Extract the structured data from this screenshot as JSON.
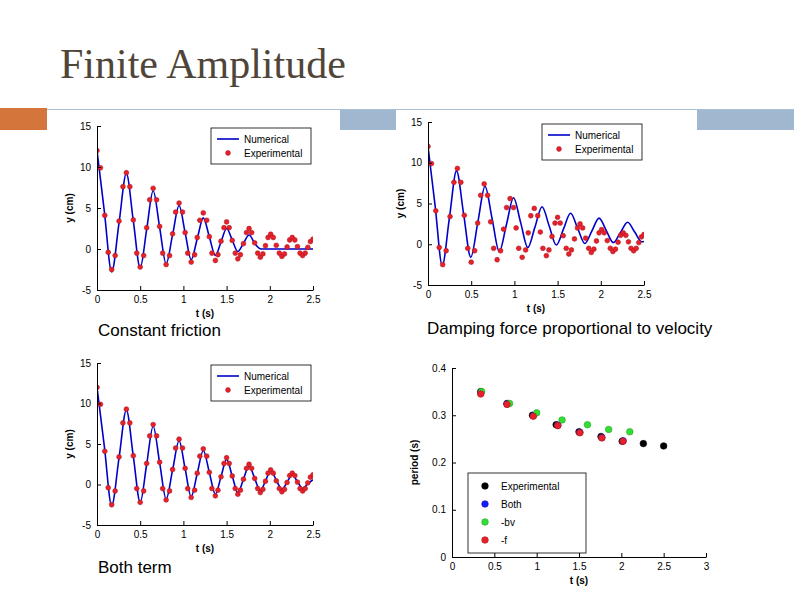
{
  "slide": {
    "title": "Finite Amplitude"
  },
  "chart_data": [
    {
      "type": "line",
      "caption": "Constant friction",
      "x_label": "t (s)",
      "y_label": "y (cm)",
      "xlim": [
        0,
        2.5
      ],
      "xticks": [
        0,
        0.5,
        1,
        1.5,
        2,
        2.5
      ],
      "ylim": [
        -5,
        15
      ],
      "yticks": [
        -5,
        0,
        5,
        10,
        15
      ],
      "grid": false,
      "legend": "upper right",
      "series": [
        {
          "name": "Numerical",
          "type": "line",
          "line_style": "solid",
          "color": "#0000c8",
          "x": [
            0,
            0.085,
            0.17,
            0.255,
            0.34,
            0.42,
            0.5,
            0.575,
            0.65,
            0.725,
            0.8,
            0.875,
            0.95,
            1.02,
            1.09,
            1.16,
            1.23,
            1.3,
            1.37,
            1.435,
            1.5,
            1.565,
            1.63,
            1.695,
            1.76,
            1.83,
            1.9,
            2.5
          ],
          "values": [
            12,
            4.6,
            -2.8,
            3.2,
            9.2,
            3.45,
            -2.3,
            2.4,
            7.1,
            2.65,
            -1.8,
            1.75,
            5.3,
            2.0,
            -1.3,
            1.25,
            3.8,
            1.5,
            -0.8,
            0.85,
            2.5,
            1.1,
            -0.3,
            0.7,
            1.7,
            0.6,
            0.0,
            0.0
          ]
        },
        {
          "name": "Experimental",
          "type": "scatter",
          "marker": "circle",
          "color": "#e8202a",
          "x": [
            0,
            0.04,
            0.09,
            0.13,
            0.17,
            0.21,
            0.255,
            0.3,
            0.34,
            0.38,
            0.42,
            0.46,
            0.5,
            0.54,
            0.575,
            0.61,
            0.65,
            0.69,
            0.725,
            0.76,
            0.8,
            0.84,
            0.875,
            0.91,
            0.95,
            0.99,
            1.02,
            1.05,
            1.09,
            1.13,
            1.16,
            1.19,
            1.23,
            1.27,
            1.3,
            1.33,
            1.37,
            1.4,
            1.435,
            1.47,
            1.5,
            1.53,
            1.565,
            1.6,
            1.63,
            1.66,
            1.695,
            1.73,
            1.76,
            1.79,
            1.825,
            1.86,
            1.89,
            1.92,
            1.95,
            1.98,
            2.01,
            2.04,
            2.075,
            2.11,
            2.14,
            2.17,
            2.2,
            2.23,
            2.26,
            2.29,
            2.32,
            2.35,
            2.38,
            2.41,
            2.44,
            2.47,
            2.5
          ],
          "values": [
            12,
            9.9,
            4.1,
            -0.4,
            -2.5,
            -0.8,
            3.4,
            7.6,
            9.3,
            7.6,
            3.55,
            -0.5,
            -2.2,
            -0.8,
            2.6,
            6.0,
            7.4,
            6.0,
            2.75,
            -0.5,
            -1.9,
            -0.8,
            1.85,
            4.5,
            5.6,
            4.5,
            2.0,
            -0.5,
            -1.6,
            -0.7,
            1.4,
            3.5,
            4.4,
            3.5,
            1.5,
            -0.5,
            -1.4,
            -0.7,
            0.95,
            2.6,
            3.3,
            2.6,
            1.05,
            -0.5,
            -1.2,
            -0.7,
            0.65,
            2.0,
            2.5,
            2.0,
            0.75,
            -0.5,
            -1.0,
            -0.6,
            0.4,
            1.4,
            1.8,
            1.4,
            0.45,
            -0.5,
            -0.9,
            -0.6,
            0.25,
            1.1,
            1.4,
            1.1,
            0.3,
            -0.5,
            -0.8,
            -0.5,
            0.2,
            0.9,
            1.2
          ]
        }
      ]
    },
    {
      "type": "line",
      "caption": "Damping force proportional to velocity",
      "x_label": "t (s)",
      "y_label": "y (cm)",
      "xlim": [
        0,
        2.5
      ],
      "xticks": [
        0,
        0.5,
        1,
        1.5,
        2,
        2.5
      ],
      "ylim": [
        -5,
        15
      ],
      "yticks": [
        -5,
        0,
        5,
        10,
        15
      ],
      "grid": false,
      "legend": "upper right",
      "series": [
        {
          "name": "Numerical",
          "type": "line",
          "line_style": "solid",
          "color": "#0000c8",
          "x": [
            0,
            0.0825,
            0.165,
            0.2475,
            0.33,
            0.4125,
            0.495,
            0.5775,
            0.66,
            0.7425,
            0.825,
            0.9075,
            0.99,
            1.0725,
            1.155,
            1.2375,
            1.32,
            1.4025,
            1.485,
            1.5675,
            1.65,
            1.7325,
            1.815,
            1.8975,
            1.98,
            2.0625,
            2.145,
            2.2275,
            2.31,
            2.3925,
            2.475,
            2.5
          ],
          "values": [
            12,
            4.7,
            -2.6,
            3.2,
            9.0,
            3.7,
            -1.6,
            2.75,
            7.1,
            3.1,
            -0.9,
            2.4,
            5.7,
            2.65,
            -0.4,
            2.1,
            4.6,
            2.25,
            -0.1,
            1.85,
            3.8,
            1.95,
            0.1,
            1.65,
            3.2,
            1.7,
            0.2,
            1.45,
            2.7,
            1.5,
            0.3,
            0.35
          ]
        },
        {
          "name": "Experimental",
          "type": "scatter",
          "marker": "circle",
          "color": "#e8202a",
          "x": [
            0,
            0.04,
            0.09,
            0.13,
            0.17,
            0.21,
            0.255,
            0.3,
            0.34,
            0.38,
            0.42,
            0.46,
            0.5,
            0.54,
            0.575,
            0.61,
            0.65,
            0.69,
            0.725,
            0.76,
            0.8,
            0.84,
            0.875,
            0.91,
            0.95,
            0.99,
            1.02,
            1.05,
            1.09,
            1.13,
            1.16,
            1.19,
            1.23,
            1.27,
            1.3,
            1.33,
            1.37,
            1.4,
            1.435,
            1.47,
            1.5,
            1.53,
            1.565,
            1.6,
            1.63,
            1.66,
            1.695,
            1.73,
            1.76,
            1.79,
            1.825,
            1.86,
            1.89,
            1.92,
            1.95,
            1.98,
            2.01,
            2.04,
            2.075,
            2.11,
            2.14,
            2.17,
            2.2,
            2.23,
            2.26,
            2.29,
            2.32,
            2.35,
            2.38,
            2.41,
            2.44,
            2.47,
            2.5
          ],
          "values": [
            12,
            9.9,
            4.1,
            -0.4,
            -2.5,
            -0.8,
            3.4,
            7.6,
            9.3,
            7.6,
            3.55,
            -0.5,
            -2.2,
            -0.8,
            2.6,
            6.0,
            7.4,
            6.0,
            2.75,
            -0.5,
            -1.9,
            -0.8,
            1.85,
            4.5,
            5.6,
            4.5,
            2.0,
            -0.5,
            -1.6,
            -0.7,
            1.4,
            3.5,
            4.4,
            3.5,
            1.5,
            -0.5,
            -1.4,
            -0.7,
            0.95,
            2.6,
            3.3,
            2.6,
            1.05,
            -0.5,
            -1.2,
            -0.7,
            0.65,
            2.0,
            2.5,
            2.0,
            0.75,
            -0.5,
            -1.0,
            -0.6,
            0.4,
            1.4,
            1.8,
            1.4,
            0.45,
            -0.5,
            -0.9,
            -0.6,
            0.25,
            1.1,
            1.4,
            1.1,
            0.3,
            -0.5,
            -0.8,
            -0.5,
            0.2,
            0.9,
            1.2
          ]
        }
      ]
    },
    {
      "type": "line",
      "caption": "Both term",
      "x_label": "t (s)",
      "y_label": "y (cm)",
      "xlim": [
        0,
        2.5
      ],
      "xticks": [
        0,
        0.5,
        1,
        1.5,
        2,
        2.5
      ],
      "ylim": [
        -5,
        15
      ],
      "yticks": [
        -5,
        0,
        5,
        10,
        15
      ],
      "grid": false,
      "legend": "upper right",
      "series": [
        {
          "name": "Numerical",
          "type": "line",
          "line_style": "solid",
          "color": "#0000c8",
          "x": [
            0,
            0.085,
            0.17,
            0.255,
            0.34,
            0.42,
            0.5,
            0.575,
            0.65,
            0.725,
            0.8,
            0.875,
            0.95,
            1.02,
            1.09,
            1.16,
            1.23,
            1.3,
            1.37,
            1.435,
            1.5,
            1.565,
            1.63,
            1.695,
            1.76,
            1.825,
            1.89,
            1.95,
            2.01,
            2.075,
            2.14,
            2.2,
            2.26,
            2.32,
            2.38,
            2.44,
            2.5
          ],
          "values": [
            12,
            4.7,
            -2.6,
            3.3,
            9.2,
            3.5,
            -2.2,
            2.5,
            7.2,
            2.7,
            -1.8,
            1.8,
            5.4,
            1.95,
            -1.5,
            1.35,
            4.2,
            1.5,
            -1.2,
            0.95,
            3.1,
            1.05,
            -1.0,
            0.65,
            2.3,
            0.75,
            -0.8,
            0.45,
            1.7,
            0.55,
            -0.6,
            0.3,
            1.2,
            0.35,
            -0.5,
            0.1,
            0.6
          ]
        },
        {
          "name": "Experimental",
          "type": "scatter",
          "marker": "circle",
          "color": "#e8202a",
          "x": [
            0,
            0.04,
            0.09,
            0.13,
            0.17,
            0.21,
            0.255,
            0.3,
            0.34,
            0.38,
            0.42,
            0.46,
            0.5,
            0.54,
            0.575,
            0.61,
            0.65,
            0.69,
            0.725,
            0.76,
            0.8,
            0.84,
            0.875,
            0.91,
            0.95,
            0.99,
            1.02,
            1.05,
            1.09,
            1.13,
            1.16,
            1.19,
            1.23,
            1.27,
            1.3,
            1.33,
            1.37,
            1.4,
            1.435,
            1.47,
            1.5,
            1.53,
            1.565,
            1.6,
            1.63,
            1.66,
            1.695,
            1.73,
            1.76,
            1.79,
            1.825,
            1.86,
            1.89,
            1.92,
            1.95,
            1.98,
            2.01,
            2.04,
            2.075,
            2.11,
            2.14,
            2.17,
            2.2,
            2.23,
            2.26,
            2.29,
            2.32,
            2.35,
            2.38,
            2.41,
            2.44,
            2.47,
            2.5
          ],
          "values": [
            12,
            9.9,
            4.1,
            -0.4,
            -2.5,
            -0.8,
            3.4,
            7.6,
            9.3,
            7.6,
            3.55,
            -0.5,
            -2.2,
            -0.8,
            2.6,
            6.0,
            7.4,
            6.0,
            2.75,
            -0.5,
            -1.9,
            -0.8,
            1.85,
            4.5,
            5.6,
            4.5,
            2.0,
            -0.5,
            -1.6,
            -0.7,
            1.4,
            3.5,
            4.4,
            3.5,
            1.5,
            -0.5,
            -1.4,
            -0.7,
            0.95,
            2.6,
            3.3,
            2.6,
            1.05,
            -0.5,
            -1.2,
            -0.7,
            0.65,
            2.0,
            2.5,
            2.0,
            0.75,
            -0.5,
            -1.0,
            -0.6,
            0.4,
            1.4,
            1.8,
            1.4,
            0.45,
            -0.5,
            -0.9,
            -0.6,
            0.25,
            1.1,
            1.4,
            1.1,
            0.3,
            -0.5,
            -0.8,
            -0.5,
            0.2,
            0.9,
            1.2
          ]
        }
      ]
    },
    {
      "type": "scatter",
      "x_label": "t (s)",
      "y_label": "period (s)",
      "xlim": [
        0,
        3
      ],
      "xticks": [
        0,
        0.5,
        1,
        1.5,
        2,
        2.5,
        3
      ],
      "ylim": [
        0,
        0.4
      ],
      "yticks": [
        0,
        0.1,
        0.2,
        0.3,
        0.4
      ],
      "grid": false,
      "legend": "lower left",
      "series": [
        {
          "name": "Experimental",
          "type": "scatter",
          "marker": "circle",
          "color": "#000000",
          "x": [
            0.34,
            0.65,
            0.95,
            1.23,
            1.5,
            1.76,
            2.01,
            2.26,
            2.5
          ],
          "values": [
            0.35,
            0.325,
            0.3,
            0.28,
            0.265,
            0.255,
            0.245,
            0.24,
            0.235
          ]
        },
        {
          "name": "Both",
          "type": "scatter",
          "marker": "circle",
          "color": "#1a1aff",
          "x": [
            0.34,
            0.65,
            0.96,
            1.25,
            1.51,
            1.77,
            2.02
          ],
          "values": [
            0.347,
            0.324,
            0.299,
            0.279,
            0.264,
            0.253,
            0.246
          ]
        },
        {
          "name": "-bv",
          "type": "scatter",
          "marker": "circle",
          "color": "#33dd33",
          "x": [
            0.35,
            0.68,
            1.0,
            1.3,
            1.6,
            1.85,
            2.1
          ],
          "values": [
            0.35,
            0.325,
            0.305,
            0.29,
            0.28,
            0.27,
            0.265
          ]
        },
        {
          "name": "-f",
          "type": "scatter",
          "marker": "circle",
          "color": "#e8202a",
          "x": [
            0.34,
            0.65,
            0.96,
            1.25,
            1.51,
            1.77,
            2.02
          ],
          "values": [
            0.345,
            0.323,
            0.298,
            0.278,
            0.263,
            0.252,
            0.245
          ]
        }
      ]
    }
  ]
}
